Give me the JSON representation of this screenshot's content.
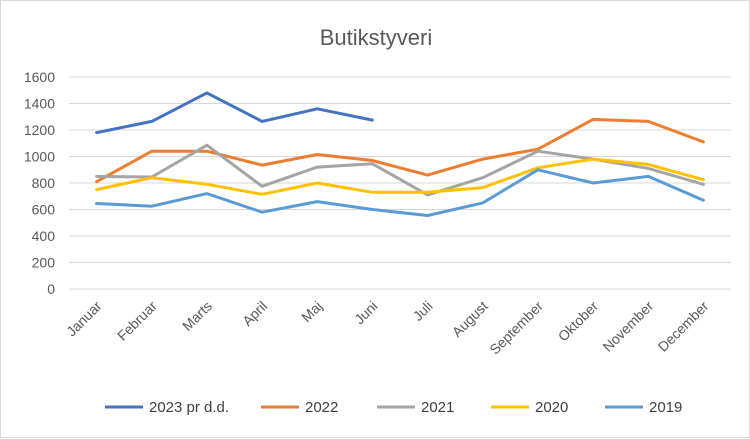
{
  "chart_data": {
    "type": "line",
    "title": "Butikstyveri",
    "categories": [
      "Januar",
      "Februar",
      "Marts",
      "April",
      "Maj",
      "Juni",
      "Juli",
      "August",
      "September",
      "Oktober",
      "November",
      "December"
    ],
    "yticks": [
      "0",
      "200",
      "400",
      "600",
      "800",
      "1000",
      "1200",
      "1400",
      "1600"
    ],
    "ylim": [
      0,
      1600
    ],
    "grid": true,
    "legend": "bottom",
    "series": [
      {
        "name": "2023 pr d.d.",
        "color": "#4472C4",
        "values": [
          1180,
          1265,
          1480,
          1265,
          1360,
          1275,
          null,
          null,
          null,
          null,
          null,
          null
        ]
      },
      {
        "name": "2022",
        "color": "#ED7D31",
        "values": [
          810,
          1040,
          1040,
          935,
          1015,
          970,
          860,
          980,
          1055,
          1280,
          1265,
          1110
        ]
      },
      {
        "name": "2021",
        "color": "#A5A5A5",
        "values": [
          850,
          845,
          1085,
          775,
          920,
          945,
          710,
          840,
          1040,
          980,
          910,
          790
        ]
      },
      {
        "name": "2020",
        "color": "#FFC000",
        "values": [
          750,
          840,
          790,
          715,
          800,
          730,
          730,
          765,
          915,
          980,
          940,
          825
        ]
      },
      {
        "name": "2019",
        "color": "#5B9BD5",
        "values": [
          645,
          625,
          720,
          580,
          660,
          600,
          555,
          650,
          900,
          800,
          850,
          670
        ]
      }
    ]
  }
}
